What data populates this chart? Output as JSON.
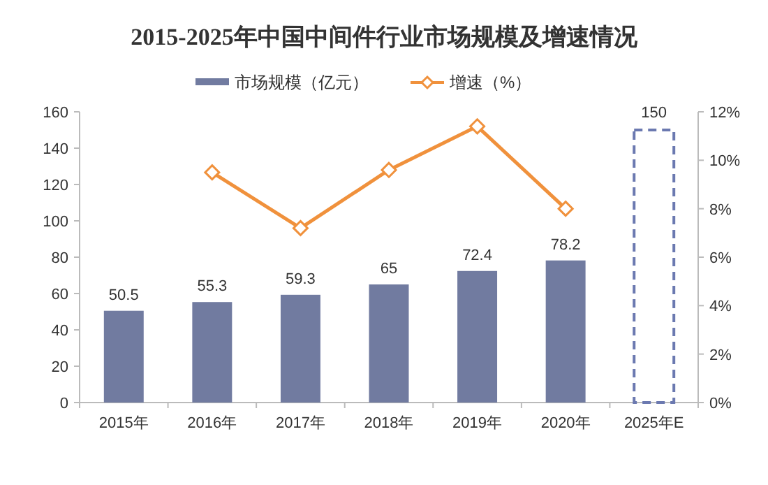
{
  "chart_data": {
    "type": "bar",
    "title": "2015-2025年中国中间件行业市场规模及增速情况",
    "categories": [
      "2015年",
      "2016年",
      "2017年",
      "2018年",
      "2019年",
      "2020年",
      "2025年E"
    ],
    "series": [
      {
        "name": "市场规模（亿元）",
        "color": "#717ba0",
        "values": [
          50.5,
          55.3,
          59.3,
          65,
          72.4,
          78.2,
          null
        ],
        "value_labels": [
          "50.5",
          "55.3",
          "59.3",
          "65",
          "72.4",
          "78.2",
          null
        ]
      },
      {
        "color": "#6b79b0",
        "line_style": "dashed",
        "values": [
          null,
          null,
          null,
          null,
          null,
          null,
          150
        ],
        "value_labels": [
          null,
          null,
          null,
          null,
          null,
          null,
          "150"
        ]
      },
      {
        "name": "增速（%）",
        "type": "line",
        "axis": "y2",
        "color": "#f0913c",
        "marker": "diamond",
        "values": [
          null,
          9.5,
          7.2,
          9.6,
          11.4,
          8.0,
          null
        ]
      }
    ],
    "ylim": [
      0,
      160
    ],
    "yticks": [
      0,
      20,
      40,
      60,
      80,
      100,
      120,
      140,
      160
    ],
    "y2lim": [
      0,
      12
    ],
    "y2ticks": [
      {
        "value": 0,
        "label": "0%"
      },
      {
        "value": 2,
        "label": "2%"
      },
      {
        "value": 4,
        "label": "4%"
      },
      {
        "value": 6,
        "label": "6%"
      },
      {
        "value": 8,
        "label": "8%"
      },
      {
        "value": 10,
        "label": "10%"
      },
      {
        "value": 12,
        "label": "12%"
      }
    ],
    "grid": false,
    "legend": "top"
  }
}
